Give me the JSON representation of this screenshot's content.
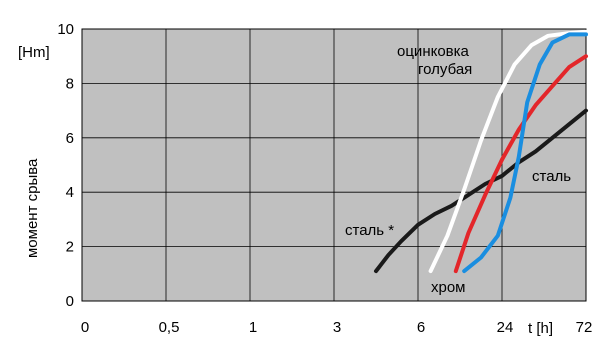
{
  "chart_data": {
    "type": "line",
    "xlabel": "t [h]",
    "ylabel": "момент срыва",
    "yunit": "[Hm]",
    "x_ticks": [
      "0",
      "0,5",
      "1",
      "3",
      "6",
      "24",
      "72"
    ],
    "y_ticks": [
      "0",
      "2",
      "4",
      "6",
      "8",
      "10"
    ],
    "xlim": [
      0,
      6
    ],
    "ylim": [
      0,
      10
    ],
    "grid": true,
    "series": [
      {
        "label": "сталь *",
        "color": "#1a1a1a",
        "points": [
          [
            3.5,
            1.1
          ],
          [
            3.65,
            1.7
          ],
          [
            3.8,
            2.2
          ],
          [
            4.0,
            2.8
          ],
          [
            4.2,
            3.2
          ],
          [
            4.4,
            3.5
          ],
          [
            4.6,
            3.9
          ],
          [
            4.8,
            4.3
          ],
          [
            5.0,
            4.6
          ],
          [
            5.2,
            5.1
          ],
          [
            5.4,
            5.5
          ],
          [
            5.6,
            6.0
          ],
          [
            5.8,
            6.5
          ],
          [
            6.0,
            7.0
          ]
        ]
      },
      {
        "label": "оцинковка голубая",
        "color": "#ffffff",
        "points": [
          [
            4.15,
            1.1
          ],
          [
            4.35,
            2.4
          ],
          [
            4.55,
            4.1
          ],
          [
            4.75,
            5.9
          ],
          [
            4.95,
            7.5
          ],
          [
            5.15,
            8.7
          ],
          [
            5.35,
            9.4
          ],
          [
            5.55,
            9.75
          ],
          [
            5.8,
            9.85
          ],
          [
            6.0,
            9.9
          ]
        ]
      },
      {
        "label": "хром",
        "color": "#e3262a",
        "points": [
          [
            4.45,
            1.1
          ],
          [
            4.6,
            2.5
          ],
          [
            4.8,
            3.9
          ],
          [
            5.0,
            5.2
          ],
          [
            5.2,
            6.3
          ],
          [
            5.4,
            7.2
          ],
          [
            5.6,
            7.9
          ],
          [
            5.8,
            8.6
          ],
          [
            6.0,
            9.0
          ]
        ]
      },
      {
        "label": "сталь",
        "color": "#1a8ee0",
        "points": [
          [
            4.55,
            1.1
          ],
          [
            4.75,
            1.6
          ],
          [
            4.95,
            2.4
          ],
          [
            5.1,
            3.8
          ],
          [
            5.2,
            5.3
          ],
          [
            5.3,
            7.3
          ],
          [
            5.45,
            8.7
          ],
          [
            5.6,
            9.5
          ],
          [
            5.8,
            9.8
          ],
          [
            6.0,
            9.8
          ]
        ]
      }
    ],
    "annotations": [
      {
        "text": "оцинковка",
        "anchor": "white-upper-a"
      },
      {
        "text": "голубая",
        "anchor": "white-upper-b"
      },
      {
        "text": "сталь *",
        "anchor": "black-left"
      },
      {
        "text": "сталь",
        "anchor": "blue-right"
      },
      {
        "text": "хром",
        "anchor": "red-bottom"
      }
    ]
  }
}
